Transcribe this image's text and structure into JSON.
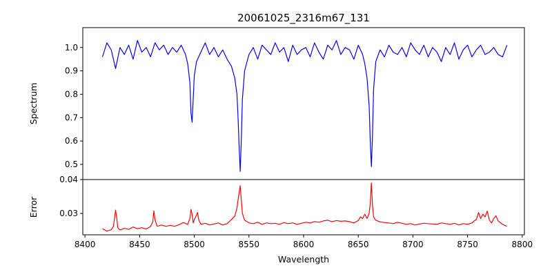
{
  "chart_data": [
    {
      "type": "line",
      "title": "20061025_2316m67_131",
      "ylabel": "Spectrum",
      "xlabel": "",
      "xlim": [
        8398,
        8802
      ],
      "ylim": [
        0.435,
        1.085
      ],
      "yticks": [
        "0.5",
        "0.6",
        "0.7",
        "0.8",
        "0.9",
        "1.0"
      ],
      "grid": false,
      "color": "#0000ff",
      "series": [
        {
          "x": [
            8416,
            8420,
            8424,
            8428,
            8432,
            8436,
            8440,
            8444,
            8448,
            8452,
            8456,
            8460,
            8464,
            8468,
            8472,
            8476,
            8480,
            8484,
            8488,
            8492,
            8494,
            8496,
            8497,
            8498,
            8499,
            8500,
            8502,
            8506,
            8510,
            8514,
            8518,
            8522,
            8526,
            8530,
            8534,
            8537,
            8539,
            8540,
            8541,
            8542,
            8543,
            8544,
            8546,
            8550,
            8554,
            8558,
            8562,
            8566,
            8570,
            8574,
            8578,
            8582,
            8586,
            8590,
            8594,
            8598,
            8602,
            8606,
            8610,
            8614,
            8618,
            8622,
            8626,
            8630,
            8634,
            8638,
            8642,
            8646,
            8650,
            8654,
            8656,
            8658,
            8660,
            8661,
            8662,
            8663,
            8664,
            8666,
            8670,
            8674,
            8678,
            8682,
            8686,
            8690,
            8694,
            8698,
            8702,
            8706,
            8710,
            8714,
            8718,
            8722,
            8726,
            8730,
            8734,
            8738,
            8742,
            8746,
            8750,
            8754,
            8758,
            8762,
            8766,
            8770,
            8774,
            8778,
            8782,
            8786
          ],
          "y": [
            0.96,
            1.02,
            0.99,
            0.91,
            1.0,
            0.97,
            1.01,
            0.95,
            1.03,
            0.98,
            1.0,
            0.96,
            1.02,
            0.99,
            1.01,
            0.97,
            1.0,
            0.98,
            1.01,
            0.97,
            0.93,
            0.85,
            0.72,
            0.68,
            0.78,
            0.88,
            0.94,
            0.98,
            1.02,
            0.97,
            1.0,
            0.96,
            0.99,
            0.95,
            0.92,
            0.87,
            0.8,
            0.7,
            0.58,
            0.47,
            0.6,
            0.78,
            0.9,
            0.97,
            1.0,
            0.95,
            1.01,
            0.99,
            0.97,
            1.02,
            0.98,
            1.0,
            0.94,
            1.01,
            0.97,
            0.99,
            1.0,
            0.96,
            1.02,
            0.98,
            0.95,
            1.01,
            0.99,
            1.03,
            0.97,
            1.0,
            0.99,
            0.95,
            1.01,
            0.97,
            0.93,
            0.87,
            0.75,
            0.6,
            0.49,
            0.62,
            0.82,
            0.94,
            0.99,
            0.96,
            1.01,
            0.98,
            0.97,
            1.0,
            0.96,
            1.02,
            0.99,
            0.97,
            1.01,
            0.96,
            1.0,
            0.98,
            0.94,
            1.0,
            0.97,
            1.02,
            0.95,
            0.99,
            1.01,
            0.96,
            0.99,
            1.01,
            0.97,
            0.98,
            1.0,
            0.97,
            0.96,
            1.01
          ]
        }
      ]
    },
    {
      "type": "line",
      "title": "",
      "ylabel": "Error",
      "xlabel": "Wavelength",
      "xlim": [
        8398,
        8802
      ],
      "ylim": [
        0.0237,
        0.04
      ],
      "yticks": [
        "0.03",
        "0.04"
      ],
      "xticks": [
        "8400",
        "8450",
        "8500",
        "8550",
        "8600",
        "8650",
        "8700",
        "8750",
        "8800"
      ],
      "grid": false,
      "color": "#ff0000",
      "series": [
        {
          "x": [
            8416,
            8420,
            8424,
            8426,
            8428,
            8429,
            8430,
            8432,
            8436,
            8440,
            8444,
            8448,
            8452,
            8456,
            8460,
            8462,
            8463,
            8464,
            8466,
            8470,
            8474,
            8478,
            8482,
            8486,
            8490,
            8494,
            8496,
            8497,
            8498,
            8499,
            8500,
            8502,
            8503,
            8504,
            8506,
            8510,
            8514,
            8518,
            8522,
            8526,
            8530,
            8534,
            8537,
            8539,
            8540,
            8541,
            8542,
            8543,
            8544,
            8546,
            8550,
            8554,
            8558,
            8562,
            8566,
            8570,
            8574,
            8578,
            8582,
            8586,
            8590,
            8594,
            8598,
            8602,
            8606,
            8610,
            8614,
            8618,
            8622,
            8626,
            8630,
            8634,
            8638,
            8642,
            8646,
            8650,
            8652,
            8654,
            8656,
            8658,
            8660,
            8661,
            8662,
            8663,
            8664,
            8666,
            8670,
            8674,
            8678,
            8682,
            8686,
            8690,
            8694,
            8698,
            8702,
            8706,
            8710,
            8714,
            8718,
            8722,
            8726,
            8730,
            8734,
            8738,
            8742,
            8746,
            8750,
            8754,
            8756,
            8758,
            8760,
            8762,
            8764,
            8766,
            8768,
            8770,
            8772,
            8774,
            8776,
            8778,
            8782,
            8786
          ],
          "y": [
            0.0255,
            0.0248,
            0.0252,
            0.0262,
            0.031,
            0.0288,
            0.0258,
            0.0251,
            0.0256,
            0.0253,
            0.026,
            0.0255,
            0.0258,
            0.0254,
            0.0262,
            0.0275,
            0.0308,
            0.0282,
            0.0262,
            0.0266,
            0.0262,
            0.0265,
            0.0262,
            0.0267,
            0.0273,
            0.0268,
            0.0285,
            0.0312,
            0.0298,
            0.0272,
            0.0282,
            0.0295,
            0.0303,
            0.0282,
            0.0268,
            0.0271,
            0.0266,
            0.0269,
            0.0272,
            0.0266,
            0.027,
            0.0282,
            0.0292,
            0.0315,
            0.034,
            0.036,
            0.0382,
            0.034,
            0.03,
            0.028,
            0.0272,
            0.027,
            0.0274,
            0.0268,
            0.0272,
            0.027,
            0.0271,
            0.0268,
            0.0273,
            0.027,
            0.0272,
            0.0268,
            0.0271,
            0.0274,
            0.0272,
            0.0276,
            0.0274,
            0.0278,
            0.028,
            0.0276,
            0.0279,
            0.0277,
            0.0278,
            0.0276,
            0.0272,
            0.0279,
            0.029,
            0.0285,
            0.0298,
            0.0285,
            0.03,
            0.033,
            0.039,
            0.0325,
            0.029,
            0.028,
            0.0275,
            0.0273,
            0.0272,
            0.027,
            0.0274,
            0.0271,
            0.0268,
            0.027,
            0.0266,
            0.0269,
            0.0271,
            0.027,
            0.0269,
            0.0268,
            0.0272,
            0.027,
            0.0268,
            0.0271,
            0.0266,
            0.027,
            0.0268,
            0.0272,
            0.0278,
            0.0282,
            0.0303,
            0.0285,
            0.0298,
            0.029,
            0.0307,
            0.028,
            0.0272,
            0.0285,
            0.0293,
            0.0278,
            0.0268,
            0.0262
          ]
        }
      ]
    }
  ]
}
